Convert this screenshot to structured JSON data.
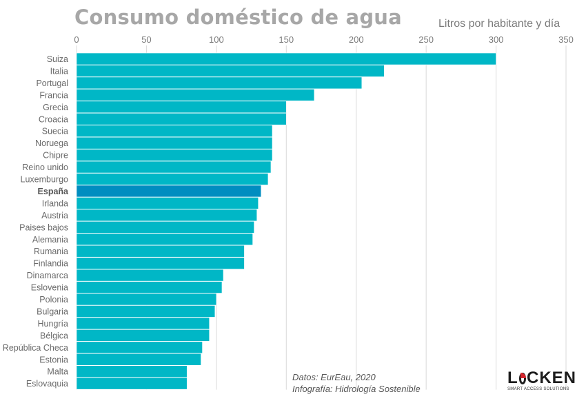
{
  "title": "Consumo doméstico de agua",
  "unit_label": "Litros por habitante y día",
  "credits": {
    "data": "Datos: EurEau, 2020",
    "infographic": "Infografía: Hidrología Sostenible"
  },
  "logo": {
    "name": "LOCKEN",
    "tagline": "SMART ACCESS SOLUTIONS",
    "accent_color": "#d7262e"
  },
  "colors": {
    "bar": "#00b7c6",
    "highlight_bar": "#008dc0",
    "grid": "#d9d9d9"
  },
  "chart_data": {
    "type": "bar",
    "orientation": "horizontal",
    "xlim": [
      0,
      350
    ],
    "ticks": [
      0,
      50,
      100,
      150,
      200,
      250,
      300,
      350
    ],
    "grid": true,
    "highlight": "España",
    "categories": [
      "Suiza",
      "Italia",
      "Portugal",
      "Francia",
      "Grecia",
      "Croacia",
      "Suecia",
      "Noruega",
      "Chipre",
      "Reino unido",
      "Luxemburgo",
      "España",
      "Irlanda",
      "Austria",
      "Paises bajos",
      "Alemania",
      "Rumania",
      "Finlandia",
      "Dinamarca",
      "Eslovenia",
      "Polonia",
      "Bulgaria",
      "Hungría",
      "Bélgica",
      "República Checa",
      "Estonia",
      "Malta",
      "Eslovaquia"
    ],
    "values": [
      300,
      220,
      204,
      170,
      150,
      150,
      140,
      140,
      140,
      139,
      137,
      132,
      130,
      129,
      127,
      126,
      120,
      120,
      105,
      104,
      100,
      99,
      95,
      95,
      90,
      89,
      79,
      79
    ]
  }
}
